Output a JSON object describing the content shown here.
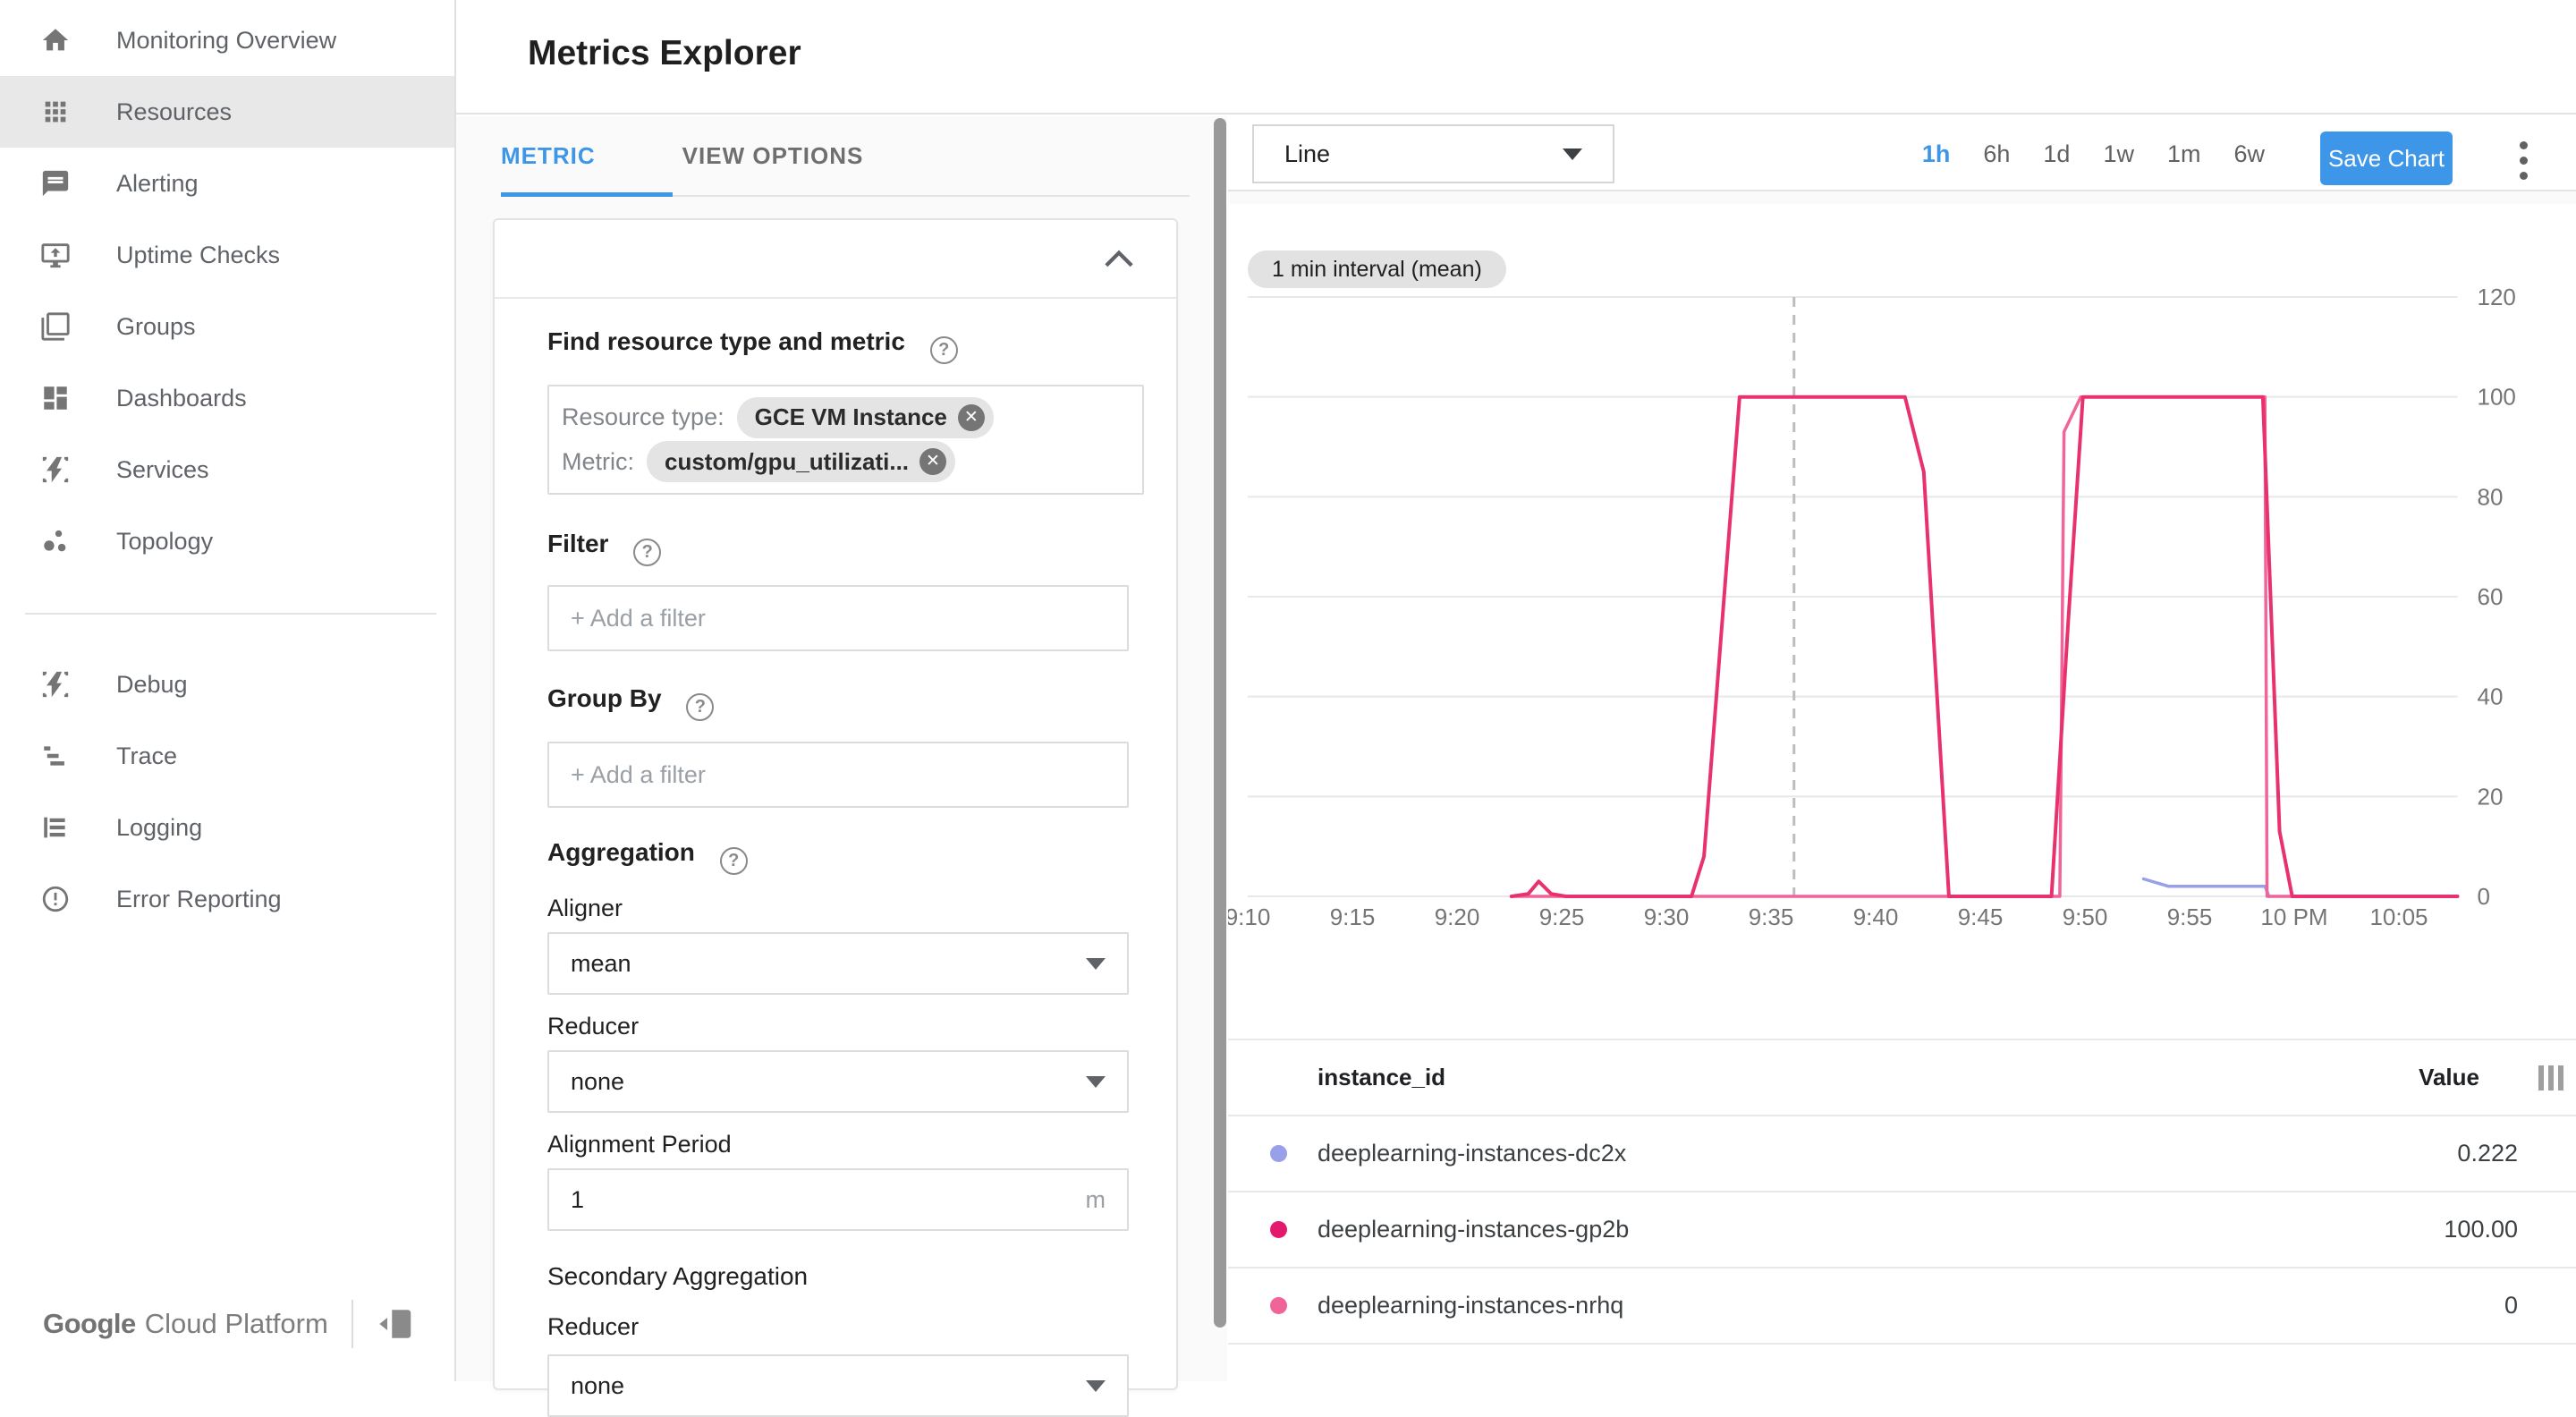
{
  "sidebar": {
    "items": [
      {
        "label": "Monitoring Overview",
        "icon": "home",
        "selected": false
      },
      {
        "label": "Resources",
        "icon": "apps",
        "selected": true
      },
      {
        "label": "Alerting",
        "icon": "alerting",
        "selected": false
      },
      {
        "label": "Uptime Checks",
        "icon": "uptime",
        "selected": false
      },
      {
        "label": "Groups",
        "icon": "groups",
        "selected": false
      },
      {
        "label": "Dashboards",
        "icon": "dashboards",
        "selected": false
      },
      {
        "label": "Services",
        "icon": "services",
        "selected": false
      },
      {
        "label": "Topology",
        "icon": "topology",
        "selected": false
      },
      {
        "divider": true
      },
      {
        "label": "Debug",
        "icon": "debug",
        "selected": false
      },
      {
        "label": "Trace",
        "icon": "trace",
        "selected": false
      },
      {
        "label": "Logging",
        "icon": "logging",
        "selected": false
      },
      {
        "label": "Error Reporting",
        "icon": "error",
        "selected": false
      }
    ],
    "footer": {
      "brand_bold": "Google",
      "brand_rest": "Cloud Platform"
    }
  },
  "header": {
    "title": "Metrics Explorer"
  },
  "tabs": [
    {
      "label": "METRIC",
      "active": true
    },
    {
      "label": "VIEW OPTIONS",
      "active": false
    }
  ],
  "panel": {
    "find_label": "Find resource type and metric",
    "resource_type_label": "Resource type:",
    "resource_type_chip": "GCE VM Instance",
    "metric_label": "Metric:",
    "metric_chip": "custom/gpu_utilizati...",
    "filter_label": "Filter",
    "filter_placeholder": "+ Add a filter",
    "group_by_label": "Group By",
    "group_by_placeholder": "+ Add a filter",
    "aggregation_label": "Aggregation",
    "aligner_label": "Aligner",
    "aligner_value": "mean",
    "reducer_label": "Reducer",
    "reducer_value": "none",
    "alignment_period_label": "Alignment Period",
    "alignment_period_value": "1",
    "alignment_period_unit": "m",
    "secondary_aggregation_label": "Secondary Aggregation",
    "secondary_reducer_label": "Reducer",
    "secondary_reducer_value": "none"
  },
  "chart_header": {
    "chart_type": "Line",
    "ranges": [
      "1h",
      "6h",
      "1d",
      "1w",
      "1m",
      "6w"
    ],
    "active_range": "1h",
    "save_label": "Save Chart"
  },
  "chart_data": {
    "type": "line",
    "interval_chip": "1 min interval (mean)",
    "x_axis": {
      "labels": [
        "9:10",
        "9:15",
        "9:20",
        "9:25",
        "9:30",
        "9:35",
        "9:40",
        "9:45",
        "9:50",
        "9:55",
        "10 PM",
        "10:05"
      ],
      "minutes": [
        0,
        5,
        10,
        15,
        20,
        25,
        30,
        35,
        40,
        45,
        50,
        55
      ],
      "span_minutes": 57.8
    },
    "y_axis": {
      "min": 0,
      "max": 120,
      "ticks": [
        0,
        20,
        40,
        60,
        80,
        100,
        120
      ]
    },
    "cursor_minute": 26.1,
    "grid": true,
    "legend_position": "bottom-table",
    "series": [
      {
        "name": "deeplearning-instances-dc2x",
        "color": "#97a0e8",
        "points": [
          [
            42.8,
            3.5
          ],
          [
            44.0,
            2.0
          ],
          [
            48.6,
            2.0
          ],
          [
            48.8,
            0
          ]
        ]
      },
      {
        "name": "deeplearning-instances-nrhq",
        "color": "#f0649a",
        "points": [
          [
            12.6,
            0
          ],
          [
            38.8,
            0
          ],
          [
            39.0,
            93
          ],
          [
            39.8,
            100
          ],
          [
            48.6,
            100
          ],
          [
            48.7,
            0
          ],
          [
            57.8,
            0
          ]
        ]
      },
      {
        "name": "deeplearning-instances-gp2b",
        "color": "#e8326e",
        "points": [
          [
            12.6,
            0
          ],
          [
            13.4,
            0.5
          ],
          [
            13.9,
            3
          ],
          [
            14.5,
            0.5
          ],
          [
            15.2,
            0
          ],
          [
            21.2,
            0
          ],
          [
            21.8,
            8
          ],
          [
            23.5,
            100
          ],
          [
            31.4,
            100
          ],
          [
            32.3,
            85
          ],
          [
            33.5,
            0
          ],
          [
            38.4,
            0
          ],
          [
            39.2,
            55
          ],
          [
            39.9,
            100
          ],
          [
            48.5,
            100
          ],
          [
            49.3,
            13
          ],
          [
            49.9,
            0
          ],
          [
            57.8,
            0
          ]
        ]
      }
    ]
  },
  "legend": {
    "header": {
      "id": "instance_id",
      "value": "Value"
    },
    "rows": [
      {
        "id": "deeplearning-instances-dc2x",
        "value": "0.222",
        "color": "#97a0e8"
      },
      {
        "id": "deeplearning-instances-gp2b",
        "value": "100.00",
        "color": "#e3196d"
      },
      {
        "id": "deeplearning-instances-nrhq",
        "value": "0",
        "color": "#f0649a"
      }
    ]
  },
  "colors": {
    "accent_blue": "#3e96e8",
    "grid_line": "#e8e8e8",
    "axis_text": "#757575",
    "cursor_dash": "#bdbdbd"
  }
}
